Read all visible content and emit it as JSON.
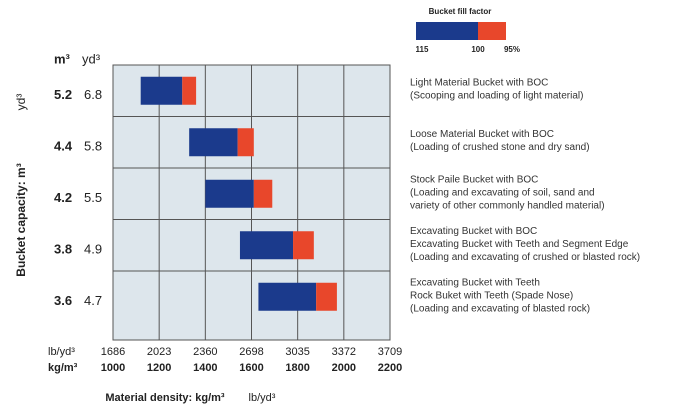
{
  "chart_data": {
    "type": "floating_bar",
    "y_axis_label": "Bucket capacity: m³",
    "y_axis_label_unit": "yd³",
    "capacity_headers": [
      "m³",
      "yd³"
    ],
    "x_axis_label": "Material density: kg/m³",
    "x_axis_label_unit": "lb/yd³",
    "x_unit_label": "kg/m³",
    "x2_unit_label": "lb/yd³",
    "xlim": [
      1000,
      2200
    ],
    "xticks": [
      1000,
      1200,
      1400,
      1600,
      1800,
      2000,
      2200
    ],
    "x2ticks": [
      1686,
      2023,
      2360,
      2698,
      3035,
      3372,
      3709
    ],
    "colors": [
      "#1b3a8c",
      "#e8472b"
    ],
    "legend": {
      "title": "Bucket fill factor",
      "labels": [
        115,
        100,
        {
          "value": 95,
          "label": "95%"
        }
      ]
    },
    "buckets": [
      {
        "m3": 5.2,
        "yd3": 6.8,
        "density_115": 1120,
        "density_100": 1300,
        "density_95": 1360,
        "description": [
          "Light Material Bucket with BOC",
          "(Scooping and loading of light material)"
        ]
      },
      {
        "m3": 4.4,
        "yd3": 5.8,
        "density_115": 1330,
        "density_100": 1540,
        "density_95": 1610,
        "description": [
          "Loose Material Bucket with BOC",
          "(Loading of crushed stone and dry sand)"
        ]
      },
      {
        "m3": 4.2,
        "yd3": 5.5,
        "density_115": 1400,
        "density_100": 1610,
        "density_95": 1690,
        "description": [
          "Stock Paile Bucket with BOC",
          "(Loading and excavating of soil, sand and",
          "variety of other commonly handled material)"
        ]
      },
      {
        "m3": 3.8,
        "yd3": 4.9,
        "density_115": 1550,
        "density_100": 1780,
        "density_95": 1870,
        "description": [
          "Excavating Bucket with BOC",
          "Excavating Bucket with Teeth and Segment Edge",
          "(Loading and excavating of crushed or blasted rock)"
        ]
      },
      {
        "m3": 3.6,
        "yd3": 4.7,
        "density_115": 1630,
        "density_100": 1880,
        "density_95": 1970,
        "description": [
          "Excavating Bucket with Teeth",
          "Rock Buket with Teeth (Spade Nose)",
          "(Loading and excavating of blasted rock)"
        ]
      }
    ]
  }
}
